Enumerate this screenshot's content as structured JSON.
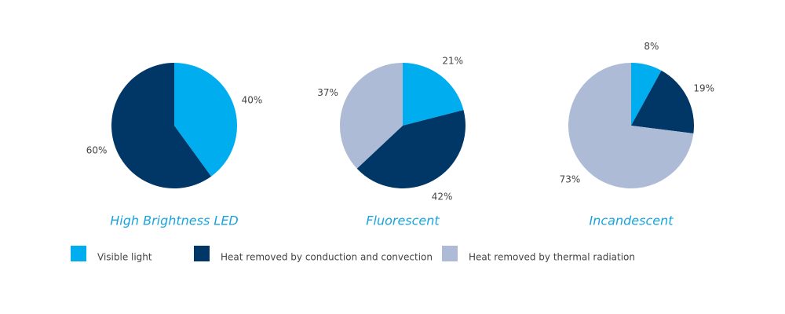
{
  "chart_data": [
    {
      "type": "pie",
      "title": "High Brightness LED",
      "values": [
        40,
        60,
        null
      ],
      "value_labels": [
        "40%",
        "60%",
        null
      ]
    },
    {
      "type": "pie",
      "title": "Fluorescent",
      "values": [
        21,
        42,
        37
      ],
      "value_labels": [
        "21%",
        "42%",
        "37%"
      ]
    },
    {
      "type": "pie",
      "title": "Incandescent",
      "values": [
        8,
        19,
        73
      ],
      "value_labels": [
        "8%",
        "19%",
        "73%"
      ]
    }
  ],
  "legend": {
    "items": [
      {
        "name": "Visible light",
        "color": "#00adef"
      },
      {
        "name": "Heat removed by conduction and convection",
        "color": "#003767"
      },
      {
        "name": "Heat removed by thermal  radiation",
        "color": "#adbbd6"
      }
    ]
  }
}
